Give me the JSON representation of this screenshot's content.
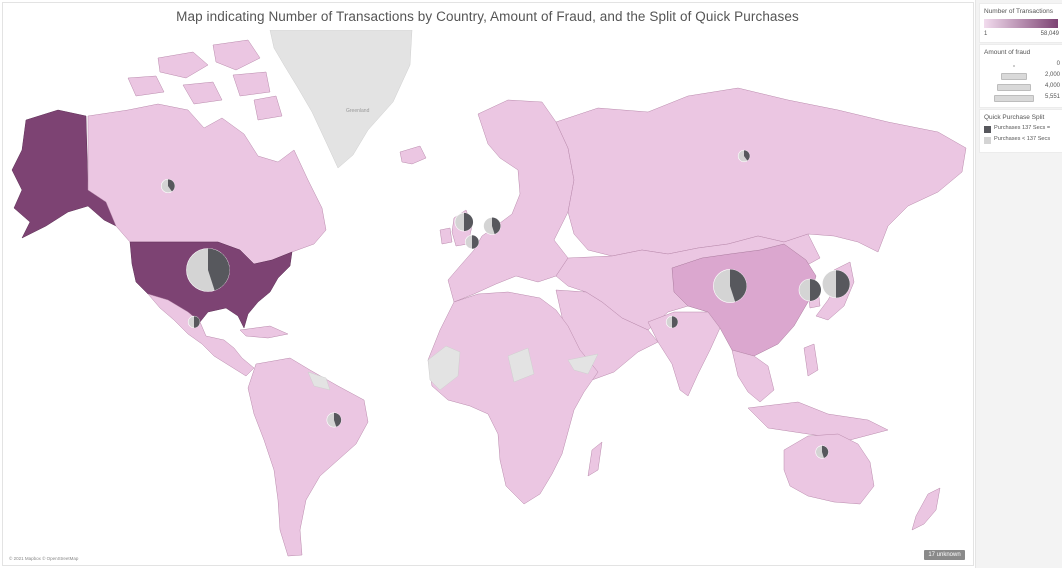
{
  "title": "Map indicating Number of Transactions by Country, Amount of Fraud, and the Split of Quick Purchases",
  "map_labels": {
    "greenland": "Greenland"
  },
  "copyright": "© 2021 Mapbox © OpenStreetMap",
  "unknown_badge": "17 unknown",
  "colors": {
    "ocean": "#ffffff",
    "land_low": "#ebc6e2",
    "land_mid": "#dba7cf",
    "land_high": "#7d4373",
    "no_data": "#e3e3e3",
    "pie_dark": "#57585d",
    "pie_light": "#d4d4d4"
  },
  "legend": {
    "transactions": {
      "title": "Number of Transactions",
      "min": "1",
      "max": "58,049"
    },
    "fraud": {
      "title": "Amount of fraud",
      "items": [
        {
          "label": "0",
          "fraction": 0.0
        },
        {
          "label": "2,000",
          "fraction": 0.36
        },
        {
          "label": "4,000",
          "fraction": 0.72
        },
        {
          "label": "5,551",
          "fraction": 1.0
        }
      ]
    },
    "quick": {
      "title": "Quick Purchase Split",
      "items": [
        {
          "label": "Purchases 137 Secs =",
          "color": "#57585d"
        },
        {
          "label": "Purchases < 137 Secs",
          "color": "#d4d4d4"
        }
      ]
    }
  },
  "map_data": {
    "countries": [
      {
        "name": "United States",
        "shade": "high",
        "fraud_fraction": 1.0,
        "quick_share": 0.45
      },
      {
        "name": "Alaska (US)",
        "shade": "high"
      },
      {
        "name": "Canada",
        "shade": "low",
        "fraud_fraction": 0.05,
        "quick_share": 0.4
      },
      {
        "name": "Mexico",
        "shade": "low",
        "fraud_fraction": 0.03,
        "quick_share": 0.5
      },
      {
        "name": "Greenland",
        "shade": "none"
      },
      {
        "name": "China",
        "shade": "mid",
        "fraud_fraction": 0.55,
        "quick_share": 0.45
      },
      {
        "name": "Japan",
        "shade": "low",
        "fraud_fraction": 0.35,
        "quick_share": 0.5
      },
      {
        "name": "South Korea",
        "shade": "low",
        "fraud_fraction": 0.2,
        "quick_share": 0.5
      },
      {
        "name": "Russia",
        "shade": "low",
        "fraud_fraction": 0.03,
        "quick_share": 0.4
      },
      {
        "name": "United Kingdom",
        "shade": "low",
        "fraud_fraction": 0.12,
        "quick_share": 0.5
      },
      {
        "name": "Germany",
        "shade": "low",
        "fraud_fraction": 0.1,
        "quick_share": 0.45
      },
      {
        "name": "France",
        "shade": "low",
        "fraud_fraction": 0.05,
        "quick_share": 0.5
      },
      {
        "name": "Brazil",
        "shade": "low",
        "fraud_fraction": 0.06,
        "quick_share": 0.45
      },
      {
        "name": "Australia",
        "shade": "low",
        "fraud_fraction": 0.04,
        "quick_share": 0.45
      },
      {
        "name": "India",
        "shade": "low",
        "fraud_fraction": 0.03,
        "quick_share": 0.5
      }
    ]
  }
}
